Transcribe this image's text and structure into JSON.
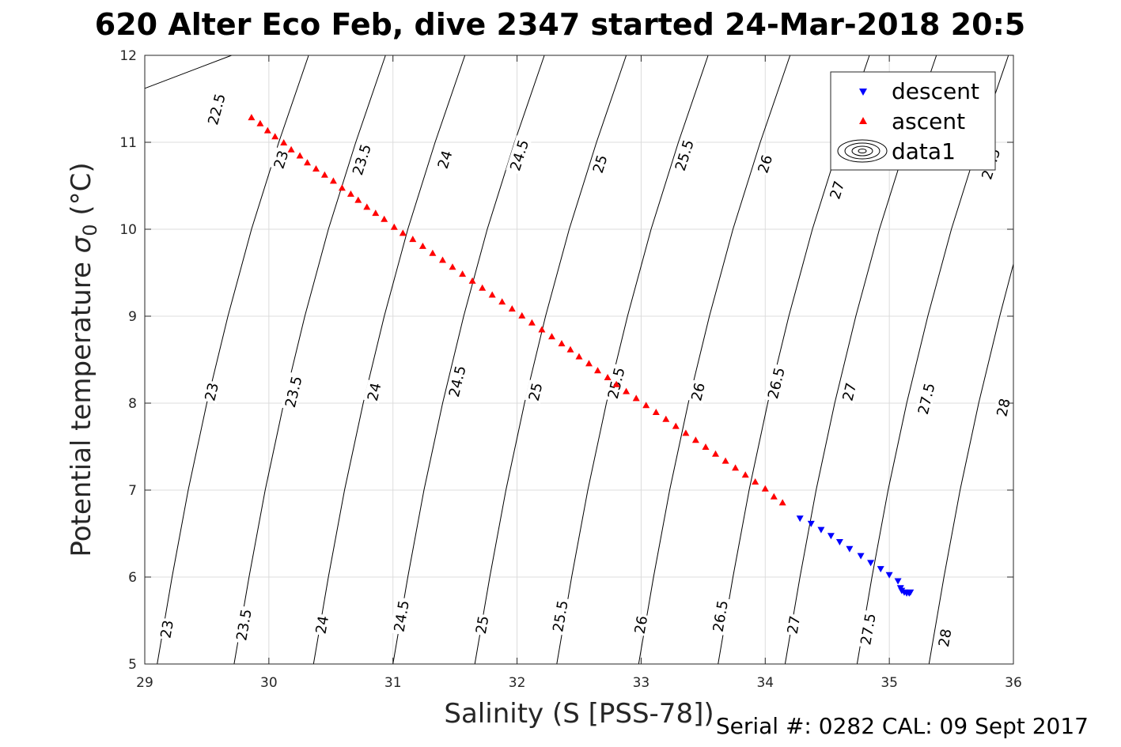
{
  "title": "620 Alter Eco Feb, dive 2347 started 24-Mar-2018 20:5",
  "footer": "Serial #: 0282  CAL: 09 Sept 2017",
  "chart_data": {
    "type": "scatter",
    "xlabel": "Salinity (S [PSS-78])",
    "ylabel_main": "Potential temperature ",
    "ylabel_sigma": "σ",
    "ylabel_sub": "0",
    "ylabel_unit": " (°C)",
    "xlim": [
      29,
      36
    ],
    "ylim": [
      5,
      12
    ],
    "x_ticks": [
      29,
      30,
      31,
      32,
      33,
      34,
      35,
      36
    ],
    "x_tick_labels": [
      "29",
      "30",
      "31",
      "32",
      "33",
      "34",
      "35",
      "36"
    ],
    "y_ticks": [
      5,
      6,
      7,
      8,
      9,
      10,
      11,
      12
    ],
    "y_tick_labels": [
      "5",
      "6",
      "7",
      "8",
      "9",
      "10",
      "11",
      "12"
    ],
    "grid": true,
    "legend_position": "top-right",
    "legend": [
      "descent",
      "ascent",
      "data1"
    ],
    "series": [
      {
        "name": "descent",
        "marker": "triangle-down",
        "color": "#0000ff",
        "x": [
          34.28,
          34.37,
          34.45,
          34.53,
          34.6,
          34.68,
          34.77,
          34.85,
          34.93,
          35.0,
          35.07,
          35.09,
          35.1,
          35.12,
          35.14,
          35.16,
          35.17
        ],
        "y": [
          6.67,
          6.61,
          6.54,
          6.47,
          6.4,
          6.32,
          6.24,
          6.16,
          6.09,
          6.02,
          5.95,
          5.87,
          5.84,
          5.82,
          5.81,
          5.81,
          5.82
        ]
      },
      {
        "name": "ascent",
        "marker": "triangle-up",
        "color": "#ff0000",
        "x": [
          29.86,
          29.93,
          29.99,
          30.05,
          30.12,
          30.18,
          30.25,
          30.31,
          30.38,
          30.45,
          30.52,
          30.59,
          30.66,
          30.72,
          30.79,
          30.86,
          30.93,
          31.01,
          31.08,
          31.16,
          31.24,
          31.32,
          31.4,
          31.48,
          31.56,
          31.64,
          31.72,
          31.8,
          31.88,
          31.96,
          32.04,
          32.12,
          32.2,
          32.28,
          32.36,
          32.43,
          32.5,
          32.58,
          32.65,
          32.73,
          32.8,
          32.88,
          32.96,
          33.04,
          33.12,
          33.2,
          33.28,
          33.36,
          33.44,
          33.52,
          33.6,
          33.68,
          33.76,
          33.84,
          33.92,
          34.0,
          34.07,
          34.14
        ],
        "y": [
          11.29,
          11.22,
          11.14,
          11.07,
          11.0,
          10.92,
          10.85,
          10.77,
          10.7,
          10.63,
          10.56,
          10.48,
          10.41,
          10.34,
          10.26,
          10.19,
          10.12,
          10.03,
          9.96,
          9.89,
          9.81,
          9.73,
          9.65,
          9.57,
          9.49,
          9.41,
          9.33,
          9.25,
          9.17,
          9.09,
          9.01,
          8.93,
          8.85,
          8.77,
          8.69,
          8.62,
          8.54,
          8.46,
          8.38,
          8.3,
          8.22,
          8.14,
          8.06,
          7.98,
          7.9,
          7.82,
          7.74,
          7.66,
          7.58,
          7.5,
          7.42,
          7.34,
          7.26,
          7.18,
          7.1,
          7.02,
          6.93,
          6.86
        ]
      },
      {
        "name": "data1",
        "marker": "contour",
        "color": "#000000",
        "contours": [
          {
            "level": "22.5",
            "points": [
              [
                29.0,
                11.62
              ],
              [
                29.7,
                12.0
              ]
            ],
            "label_at": [
              29.58,
              11.38
            ]
          },
          {
            "level": "23",
            "points": [
              [
                29.1,
                5.0
              ],
              [
                29.22,
                6.0
              ],
              [
                29.35,
                7.0
              ],
              [
                29.5,
                8.0
              ],
              [
                29.67,
                9.0
              ],
              [
                29.86,
                10.0
              ],
              [
                30.08,
                11.0
              ],
              [
                30.32,
                12.0
              ]
            ],
            "labels_at": [
              [
                29.18,
                5.4
              ],
              [
                29.54,
                8.13
              ],
              [
                30.1,
                10.8
              ]
            ]
          },
          {
            "level": "23.5",
            "points": [
              [
                29.72,
                5.0
              ],
              [
                29.84,
                6.0
              ],
              [
                29.97,
                7.0
              ],
              [
                30.12,
                8.0
              ],
              [
                30.29,
                9.0
              ],
              [
                30.48,
                10.0
              ],
              [
                30.7,
                11.0
              ],
              [
                30.94,
                12.0
              ]
            ],
            "labels_at": [
              [
                29.8,
                5.45
              ],
              [
                30.2,
                8.13
              ],
              [
                30.75,
                10.8
              ]
            ]
          },
          {
            "level": "24",
            "points": [
              [
                30.36,
                5.0
              ],
              [
                30.48,
                6.0
              ],
              [
                30.61,
                7.0
              ],
              [
                30.76,
                8.0
              ],
              [
                30.93,
                9.0
              ],
              [
                31.12,
                10.0
              ],
              [
                31.34,
                11.0
              ],
              [
                31.58,
                12.0
              ]
            ],
            "labels_at": [
              [
                30.43,
                5.45
              ],
              [
                30.85,
                8.13
              ],
              [
                31.42,
                10.8
              ]
            ]
          },
          {
            "level": "24.5",
            "points": [
              [
                31.0,
                5.0
              ],
              [
                31.12,
                6.0
              ],
              [
                31.25,
                7.0
              ],
              [
                31.4,
                8.0
              ],
              [
                31.57,
                9.0
              ],
              [
                31.76,
                10.0
              ],
              [
                31.98,
                11.0
              ],
              [
                32.22,
                12.0
              ]
            ],
            "labels_at": [
              [
                31.07,
                5.55
              ],
              [
                31.52,
                8.25
              ],
              [
                32.02,
                10.85
              ]
            ]
          },
          {
            "level": "25",
            "points": [
              [
                31.66,
                5.0
              ],
              [
                31.78,
                6.0
              ],
              [
                31.91,
                7.0
              ],
              [
                32.06,
                8.0
              ],
              [
                32.23,
                9.0
              ],
              [
                32.42,
                10.0
              ],
              [
                32.64,
                11.0
              ],
              [
                32.88,
                12.0
              ]
            ],
            "labels_at": [
              [
                31.72,
                5.45
              ],
              [
                32.15,
                8.13
              ],
              [
                32.67,
                10.75
              ]
            ]
          },
          {
            "level": "25.5",
            "points": [
              [
                32.32,
                5.0
              ],
              [
                32.44,
                6.0
              ],
              [
                32.57,
                7.0
              ],
              [
                32.72,
                8.0
              ],
              [
                32.89,
                9.0
              ],
              [
                33.08,
                10.0
              ],
              [
                33.3,
                11.0
              ],
              [
                33.54,
                12.0
              ]
            ],
            "labels_at": [
              [
                32.35,
                5.55
              ],
              [
                32.8,
                8.23
              ],
              [
                33.35,
                10.85
              ]
            ]
          },
          {
            "level": "26",
            "points": [
              [
                32.98,
                5.0
              ],
              [
                33.1,
                6.0
              ],
              [
                33.23,
                7.0
              ],
              [
                33.38,
                8.0
              ],
              [
                33.55,
                9.0
              ],
              [
                33.74,
                10.0
              ],
              [
                33.96,
                11.0
              ],
              [
                34.2,
                12.0
              ]
            ],
            "labels_at": [
              [
                33.0,
                5.45
              ],
              [
                33.46,
                8.13
              ],
              [
                34.0,
                10.75
              ]
            ]
          },
          {
            "level": "26.5",
            "points": [
              [
                33.62,
                5.0
              ],
              [
                33.74,
                6.0
              ],
              [
                33.87,
                7.0
              ],
              [
                34.02,
                8.0
              ],
              [
                34.19,
                9.0
              ],
              [
                34.38,
                10.0
              ],
              [
                34.6,
                11.0
              ],
              [
                34.84,
                12.0
              ]
            ],
            "labels_at": [
              [
                33.64,
                5.55
              ],
              [
                34.09,
                8.23
              ]
            ]
          },
          {
            "level": "27",
            "points": [
              [
                34.16,
                5.0
              ],
              [
                34.28,
                6.0
              ],
              [
                34.41,
                7.0
              ],
              [
                34.56,
                8.0
              ],
              [
                34.73,
                9.0
              ],
              [
                34.92,
                10.0
              ],
              [
                35.14,
                11.0
              ],
              [
                35.38,
                12.0
              ]
            ],
            "labels_at": [
              [
                34.23,
                5.45
              ],
              [
                34.68,
                8.13
              ],
              [
                34.58,
                10.45
              ]
            ]
          },
          {
            "level": "27.5",
            "points": [
              [
                34.74,
                5.0
              ],
              [
                34.86,
                6.0
              ],
              [
                34.99,
                7.0
              ],
              [
                35.14,
                8.0
              ],
              [
                35.31,
                9.0
              ],
              [
                35.5,
                10.0
              ],
              [
                35.72,
                11.0
              ],
              [
                35.96,
                12.0
              ]
            ],
            "labels_at": [
              [
                34.83,
                5.4
              ],
              [
                35.3,
                8.05
              ],
              [
                35.82,
                10.75
              ]
            ]
          },
          {
            "level": "28",
            "points": [
              [
                35.32,
                5.0
              ],
              [
                35.44,
                6.0
              ],
              [
                35.57,
                7.0
              ],
              [
                35.72,
                8.0
              ],
              [
                35.89,
                9.0
              ],
              [
                36.0,
                9.6
              ]
            ],
            "labels_at": [
              [
                35.45,
                5.3
              ],
              [
                35.92,
                7.95
              ]
            ]
          }
        ]
      }
    ]
  }
}
